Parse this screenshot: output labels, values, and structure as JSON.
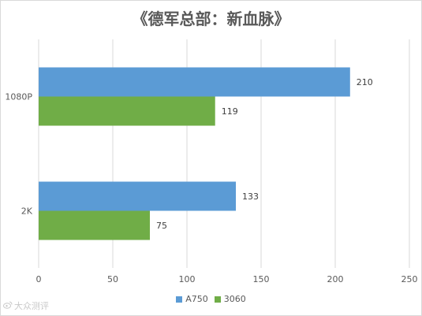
{
  "chart_data": {
    "type": "bar",
    "orientation": "horizontal",
    "title": "《德军总部：新血脉》",
    "categories": [
      "1080P",
      "2K"
    ],
    "series": [
      {
        "name": "A750",
        "color": "#5b9bd5",
        "values": [
          210,
          133
        ]
      },
      {
        "name": "3060",
        "color": "#70ad47",
        "values": [
          119,
          75
        ]
      }
    ],
    "xlim": [
      0,
      250
    ],
    "xticks": [
      0,
      50,
      100,
      150,
      200,
      250
    ],
    "grid": true,
    "legend": "bottom"
  },
  "watermark": {
    "icon": "weibo-icon",
    "text": "大众测评"
  }
}
